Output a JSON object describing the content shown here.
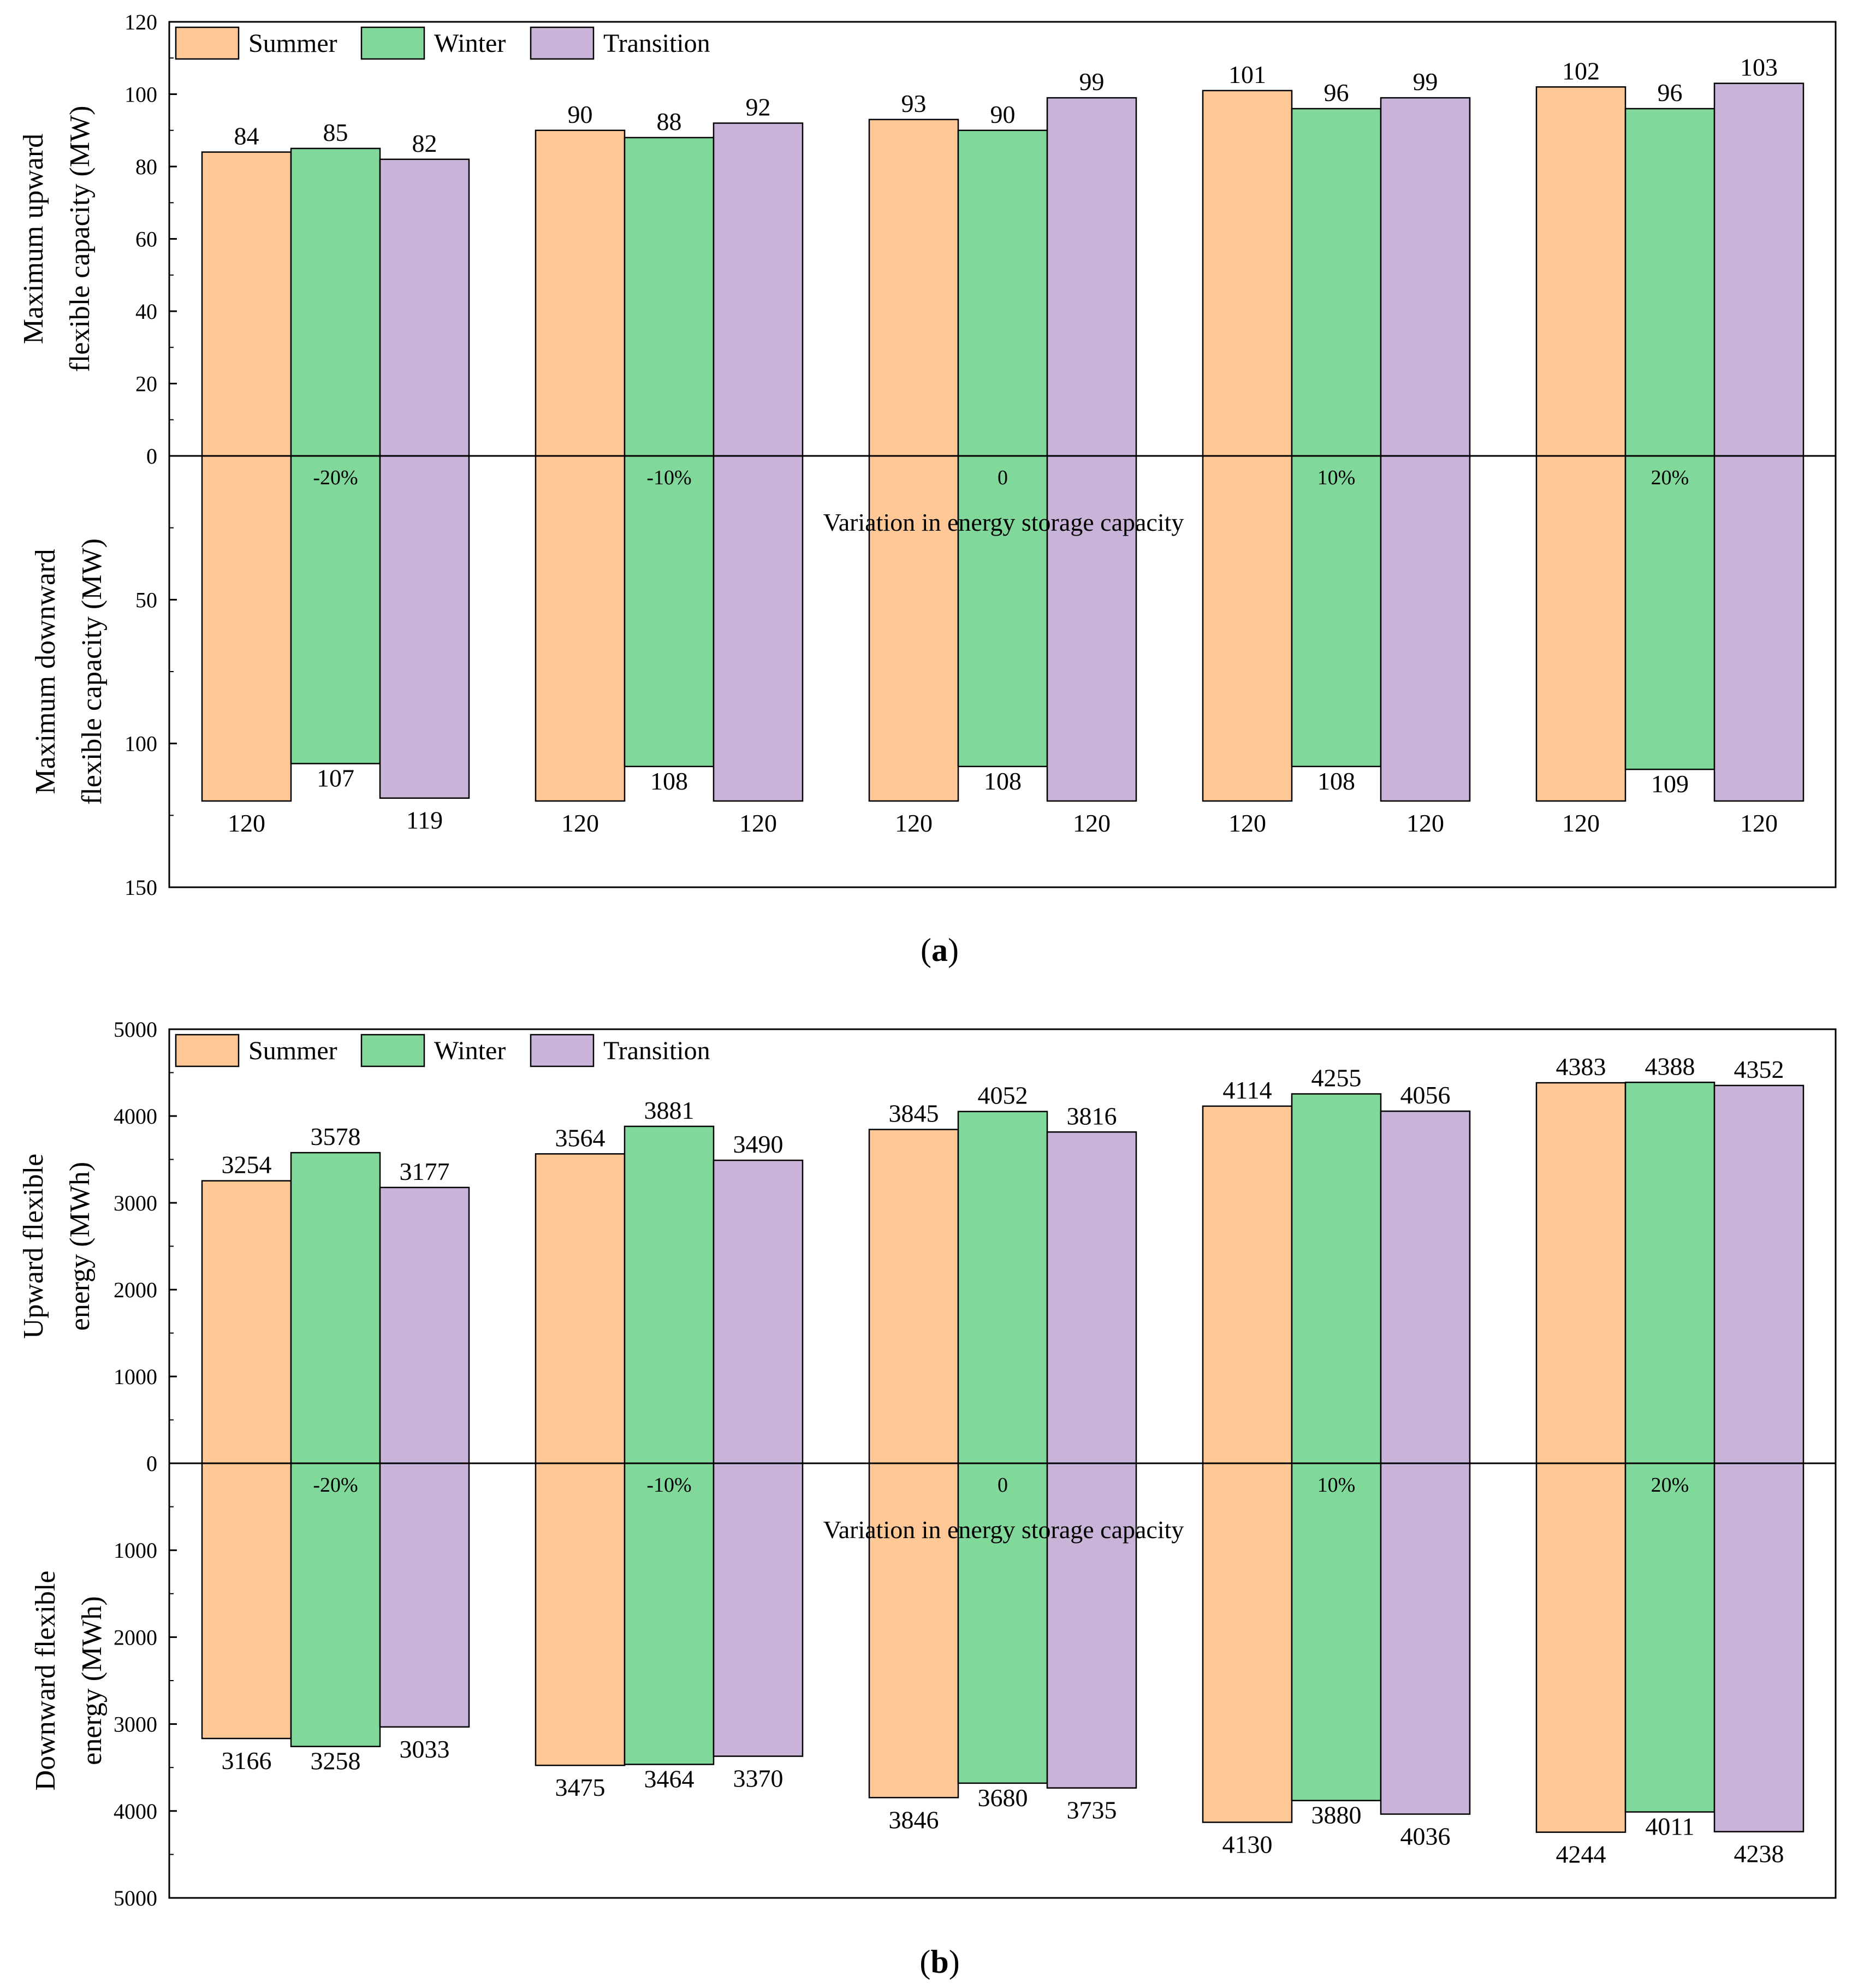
{
  "figure": {
    "colors": {
      "Summer": "#ffc896",
      "Winter": "#80d99a",
      "Transition": "#c9b3d8"
    },
    "panels": [
      {
        "id": "a",
        "caption_letter": "a",
        "legend": [
          "Summer",
          "Winter",
          "Transition"
        ],
        "xlabel": "Variation in energy storage capacity",
        "categories": [
          "-20%",
          "-10%",
          "0",
          "10%",
          "20%"
        ],
        "upper": {
          "ylabel_line1": "Maximum upward",
          "ylabel_line2": "flexible capacity (MW)",
          "ylim": [
            0,
            120
          ],
          "ticks": [
            0,
            20,
            40,
            60,
            80,
            100,
            120
          ]
        },
        "lower": {
          "ylabel_line1": "Maximum downward",
          "ylabel_line2": "flexible capacity (MW)",
          "ylim": [
            0,
            150
          ],
          "ticks": [
            0,
            50,
            100,
            150
          ]
        }
      },
      {
        "id": "b",
        "caption_letter": "b",
        "legend": [
          "Summer",
          "Winter",
          "Transition"
        ],
        "xlabel": "Variation in energy storage capacity",
        "categories": [
          "-20%",
          "-10%",
          "0",
          "10%",
          "20%"
        ],
        "upper": {
          "ylabel_line1": "Upward flexible",
          "ylabel_line2": "energy (MWh)",
          "ylim": [
            0,
            5000
          ],
          "ticks": [
            0,
            1000,
            2000,
            3000,
            4000,
            5000
          ]
        },
        "lower": {
          "ylabel_line1": "Downward flexible",
          "ylabel_line2": "energy (MWh)",
          "ylim": [
            0,
            5000
          ],
          "ticks": [
            0,
            1000,
            2000,
            3000,
            4000,
            5000
          ]
        }
      }
    ]
  },
  "chart_data": [
    {
      "type": "bar",
      "panel": "a",
      "title": "",
      "xlabel": "Variation in energy storage capacity",
      "ylabel": "Maximum upward flexible capacity (MW)",
      "categories": [
        "-20%",
        "-10%",
        "0",
        "10%",
        "20%"
      ],
      "ylim": [
        0,
        120
      ],
      "series": [
        {
          "name": "Summer",
          "values": [
            84,
            90,
            93,
            101,
            102
          ]
        },
        {
          "name": "Winter",
          "values": [
            85,
            88,
            90,
            96,
            96
          ]
        },
        {
          "name": "Transition",
          "values": [
            82,
            92,
            99,
            99,
            103
          ]
        }
      ]
    },
    {
      "type": "bar",
      "panel": "a",
      "title": "",
      "xlabel": "Variation in energy storage capacity",
      "ylabel": "Maximum downward flexible capacity (MW)",
      "categories": [
        "-20%",
        "-10%",
        "0",
        "10%",
        "20%"
      ],
      "ylim": [
        0,
        150
      ],
      "inverted": true,
      "series": [
        {
          "name": "Summer",
          "values": [
            120,
            120,
            120,
            120,
            120
          ]
        },
        {
          "name": "Winter",
          "values": [
            107,
            108,
            108,
            108,
            109
          ]
        },
        {
          "name": "Transition",
          "values": [
            119,
            120,
            120,
            120,
            120
          ]
        }
      ]
    },
    {
      "type": "bar",
      "panel": "b",
      "title": "",
      "xlabel": "Variation in energy storage capacity",
      "ylabel": "Upward flexible energy (MWh)",
      "categories": [
        "-20%",
        "-10%",
        "0",
        "10%",
        "20%"
      ],
      "ylim": [
        0,
        5000
      ],
      "series": [
        {
          "name": "Summer",
          "values": [
            3254,
            3564,
            3845,
            4114,
            4383
          ]
        },
        {
          "name": "Winter",
          "values": [
            3578,
            3881,
            4052,
            4255,
            4388
          ]
        },
        {
          "name": "Transition",
          "values": [
            3177,
            3490,
            3816,
            4056,
            4352
          ]
        }
      ]
    },
    {
      "type": "bar",
      "panel": "b",
      "title": "",
      "xlabel": "Variation in energy storage capacity",
      "ylabel": "Downward flexible energy (MWh)",
      "categories": [
        "-20%",
        "-10%",
        "0",
        "10%",
        "20%"
      ],
      "ylim": [
        0,
        5000
      ],
      "inverted": true,
      "series": [
        {
          "name": "Summer",
          "values": [
            3166,
            3475,
            3846,
            4130,
            4244
          ]
        },
        {
          "name": "Winter",
          "values": [
            3258,
            3464,
            3680,
            3880,
            4011
          ]
        },
        {
          "name": "Transition",
          "values": [
            3033,
            3370,
            3735,
            4036,
            4238
          ]
        }
      ]
    }
  ]
}
